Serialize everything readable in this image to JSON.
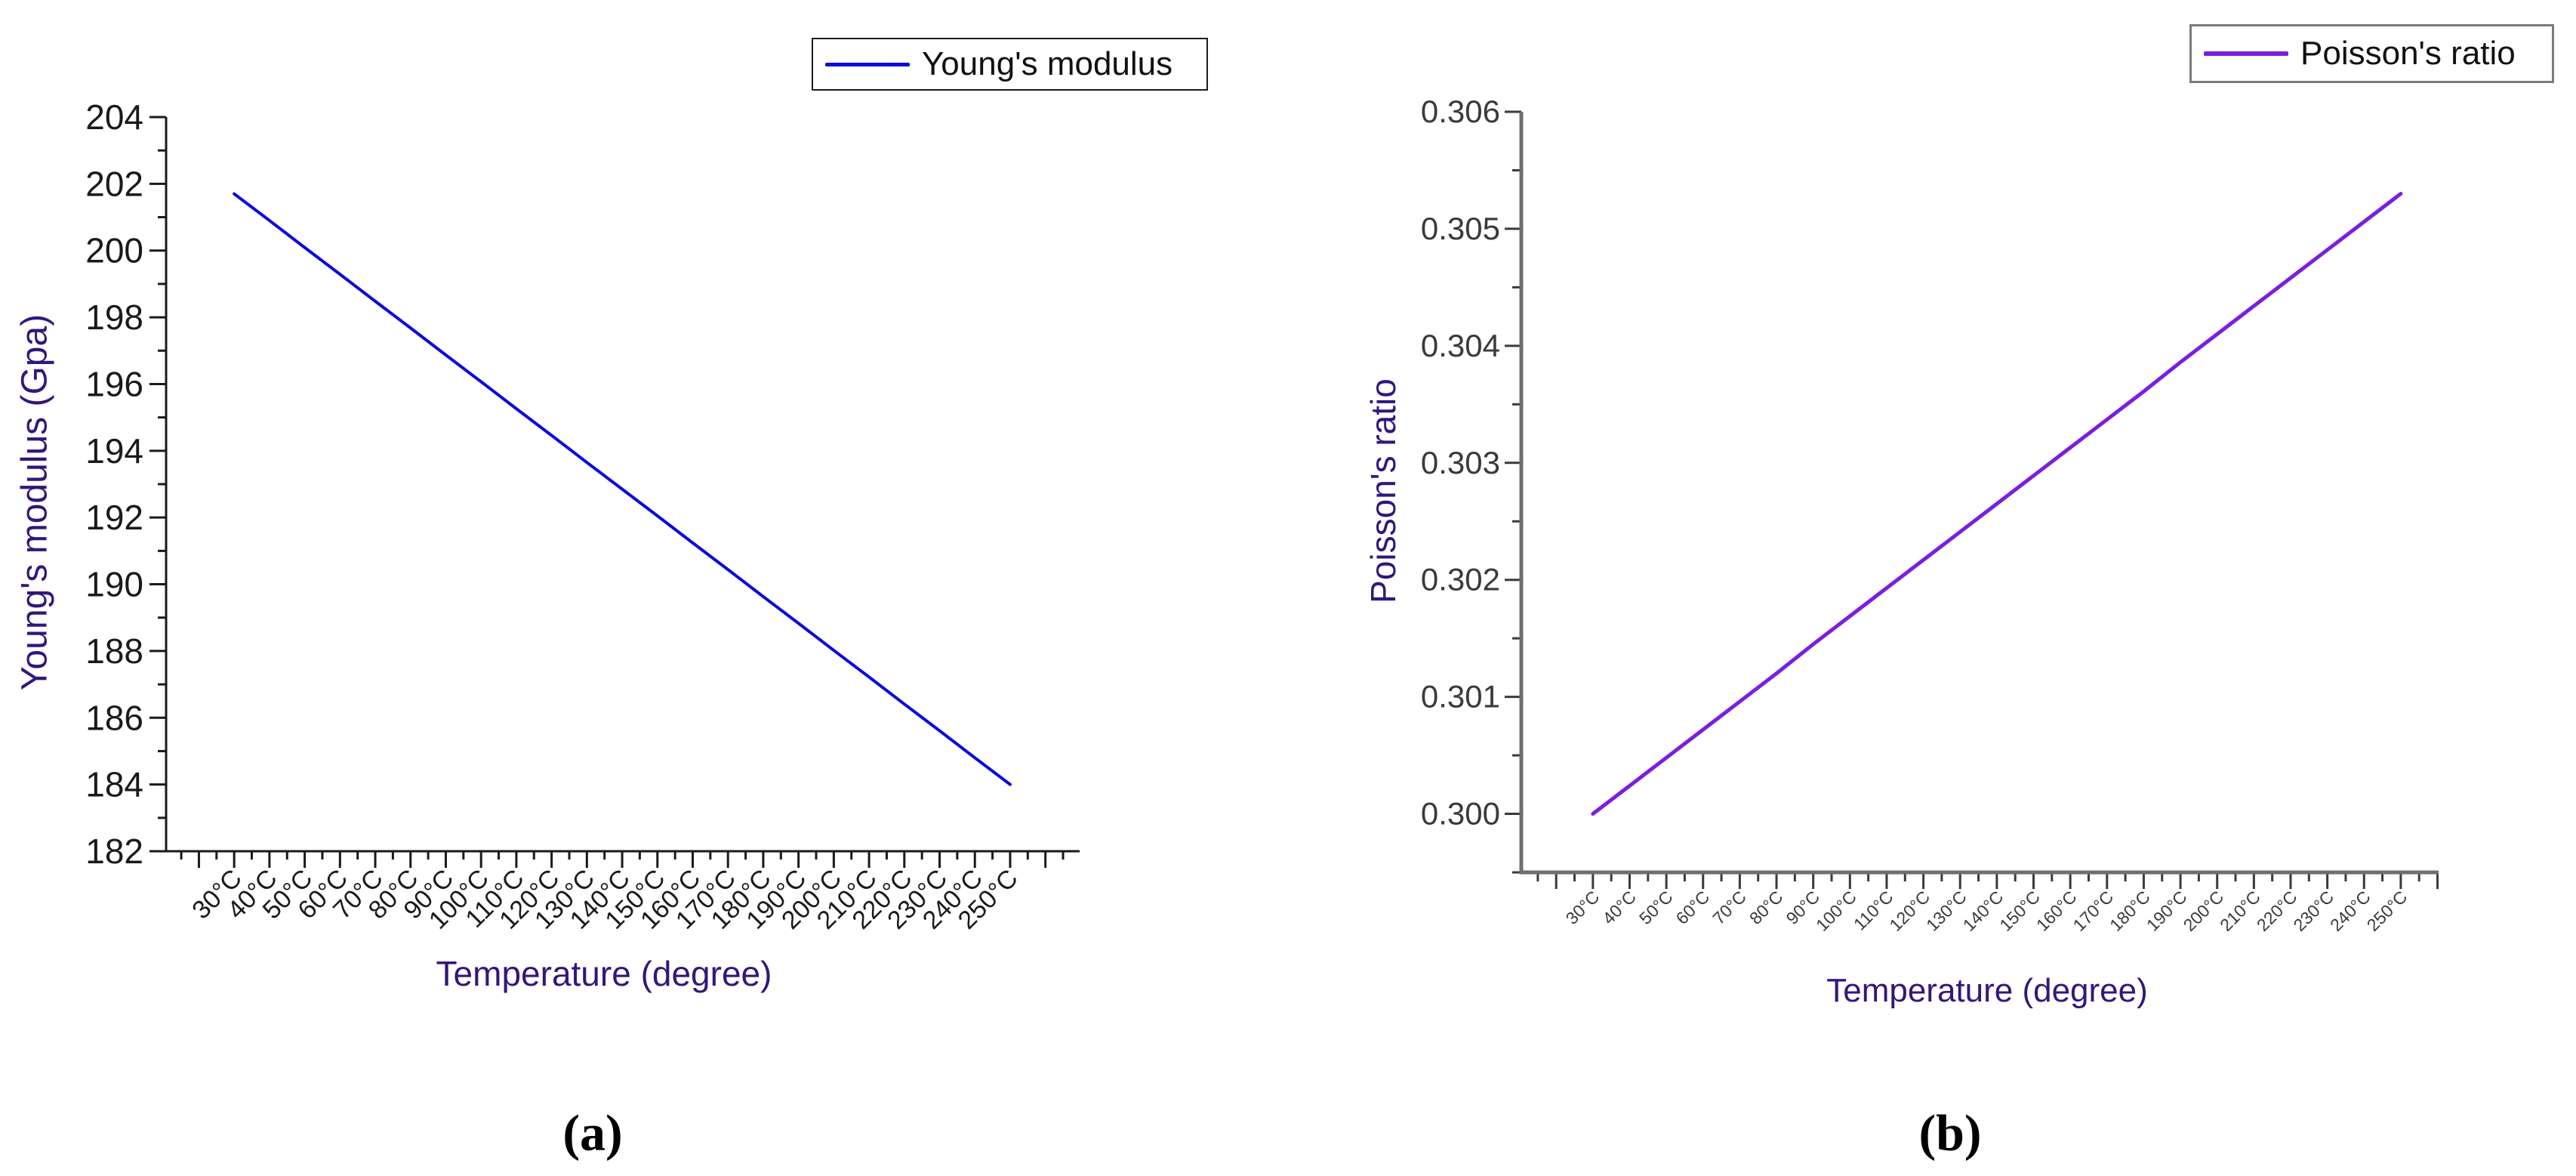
{
  "figure": {
    "background": "#ffffff",
    "title_color": "#32177b",
    "captions": {
      "a": "(a)",
      "b": "(b)"
    }
  },
  "chart_data": [
    {
      "id": "a",
      "type": "line",
      "legend": "Young's modulus",
      "line_color": "#0a0adc",
      "legend_border_color": "#1c1c1c",
      "axis_color": "#1a1a1a",
      "tick_label_color": "#1a1a1a",
      "xlabel": "Temperature (degree)",
      "ylabel": "Young's modulus (Gpa)",
      "categories": [
        "30°C",
        "40°C",
        "50°C",
        "60°C",
        "70°C",
        "80°C",
        "90°C",
        "100°C",
        "110°C",
        "120°C",
        "130°C",
        "140°C",
        "150°C",
        "160°C",
        "170°C",
        "180°C",
        "190°C",
        "200°C",
        "210°C",
        "220°C",
        "230°C",
        "240°C",
        "250°C"
      ],
      "x": [
        30,
        40,
        50,
        60,
        70,
        80,
        90,
        100,
        110,
        120,
        130,
        140,
        150,
        160,
        170,
        180,
        190,
        200,
        210,
        220,
        230,
        240,
        250
      ],
      "y": [
        201.7,
        200.9,
        200.09,
        199.29,
        198.48,
        197.68,
        196.87,
        196.07,
        195.26,
        194.46,
        193.65,
        192.85,
        192.05,
        191.24,
        190.44,
        189.63,
        188.83,
        188.02,
        187.22,
        186.41,
        185.61,
        184.8,
        184.0
      ],
      "ylim": [
        182,
        204
      ],
      "yticks": {
        "start": 182,
        "end": 204,
        "major": 2,
        "minor": 1,
        "decimals": 0
      },
      "legend_position": "top",
      "grid": false
    },
    {
      "id": "b",
      "type": "line",
      "legend": "Poisson's ratio",
      "line_color": "#7a1fe0",
      "legend_border_color": "#7b7b7b",
      "axis_color": "#6e6e6e",
      "tick_label_color": "#3a3a3a",
      "xlabel": "Temperature (degree)",
      "ylabel": "Poisson's ratio",
      "categories": [
        "30°C",
        "40°C",
        "50°C",
        "60°C",
        "70°C",
        "80°C",
        "90°C",
        "100°C",
        "110°C",
        "120°C",
        "130°C",
        "140°C",
        "150°C",
        "160°C",
        "170°C",
        "180°C",
        "190°C",
        "200°C",
        "210°C",
        "220°C",
        "230°C",
        "240°C",
        "250°C"
      ],
      "x": [
        30,
        40,
        50,
        60,
        70,
        80,
        90,
        100,
        110,
        120,
        130,
        140,
        150,
        160,
        170,
        180,
        190,
        200,
        210,
        220,
        230,
        240,
        250
      ],
      "y": [
        0.3,
        0.30024,
        0.30048,
        0.30072,
        0.30096,
        0.3012,
        0.30145,
        0.30169,
        0.30193,
        0.30217,
        0.30241,
        0.30265,
        0.30289,
        0.30313,
        0.30337,
        0.30361,
        0.30386,
        0.3041,
        0.30434,
        0.30458,
        0.30482,
        0.30506,
        0.3053
      ],
      "ylim": [
        0.2995,
        0.306
      ],
      "yticks": {
        "start": 0.3,
        "end": 0.306,
        "major": 0.001,
        "minor": 0.0005,
        "decimals": 3
      },
      "legend_position": "top-right",
      "grid": false
    }
  ]
}
